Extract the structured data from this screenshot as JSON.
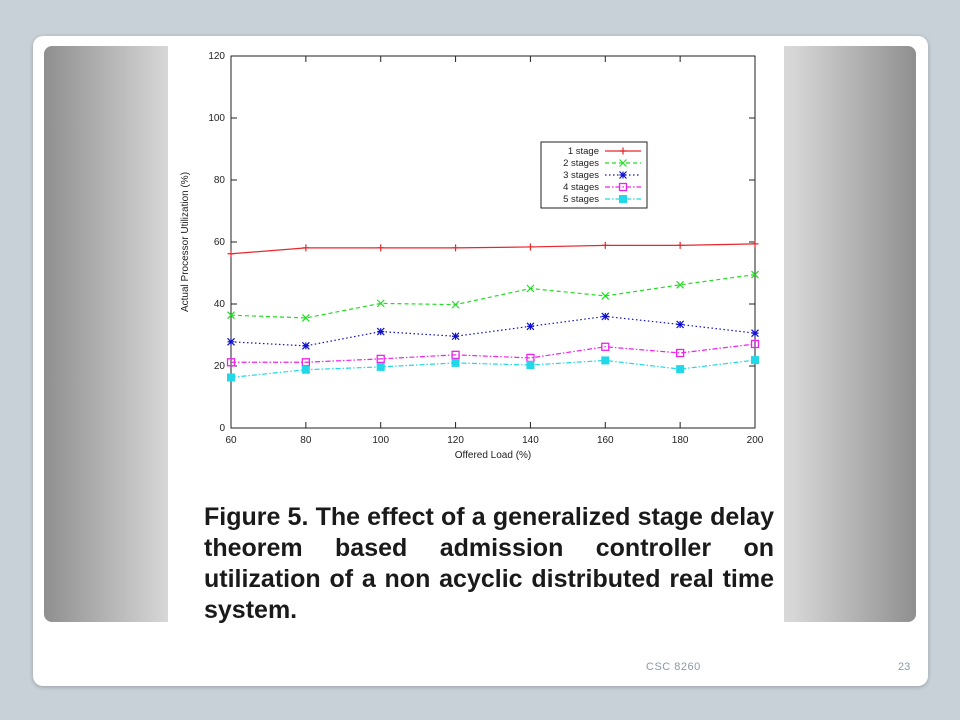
{
  "slide": {
    "footer": "CSC 8260",
    "page_number": "23"
  },
  "figure": {
    "caption": "Figure 5. The effect of a generalized stage delay theorem based admission controller on utilization of a non acyclic distributed real time system."
  },
  "chart_data": {
    "type": "line",
    "title": "",
    "xlabel": "Offered Load (%)",
    "ylabel": "Actual Processor Utilization (%)",
    "xlim": [
      60,
      200
    ],
    "ylim": [
      0,
      120
    ],
    "x_ticks": [
      60,
      80,
      100,
      120,
      140,
      160,
      180,
      200
    ],
    "y_ticks": [
      0,
      20,
      40,
      60,
      80,
      100,
      120
    ],
    "x": [
      60,
      80,
      100,
      120,
      140,
      160,
      180,
      200
    ],
    "grid": false,
    "legend_position": "upper-right",
    "series": [
      {
        "name": "1 stage",
        "color": "#e8262b",
        "marker": "plus",
        "dash": "solid",
        "values": [
          56.2,
          58.1,
          58.1,
          58.1,
          58.4,
          58.9,
          58.9,
          59.4
        ]
      },
      {
        "name": "2 stages",
        "color": "#22dd22",
        "marker": "cross",
        "dash": "dashed",
        "values": [
          36.4,
          35.5,
          40.2,
          39.8,
          45.0,
          42.6,
          46.2,
          49.5
        ]
      },
      {
        "name": "3 stages",
        "color": "#1010cc",
        "marker": "star",
        "dash": "dotted",
        "values": [
          27.8,
          26.5,
          31.1,
          29.6,
          32.8,
          36.0,
          33.4,
          30.6
        ]
      },
      {
        "name": "4 stages",
        "color": "#ee22ee",
        "marker": "square",
        "dash": "dashdot",
        "values": [
          21.2,
          21.2,
          22.3,
          23.6,
          22.6,
          26.2,
          24.2,
          27.1
        ]
      },
      {
        "name": "5 stages",
        "color": "#22d8e8",
        "marker": "filled-square",
        "dash": "dashdot",
        "values": [
          16.3,
          18.8,
          19.7,
          21.0,
          20.3,
          21.8,
          19.0,
          21.9
        ]
      }
    ]
  }
}
